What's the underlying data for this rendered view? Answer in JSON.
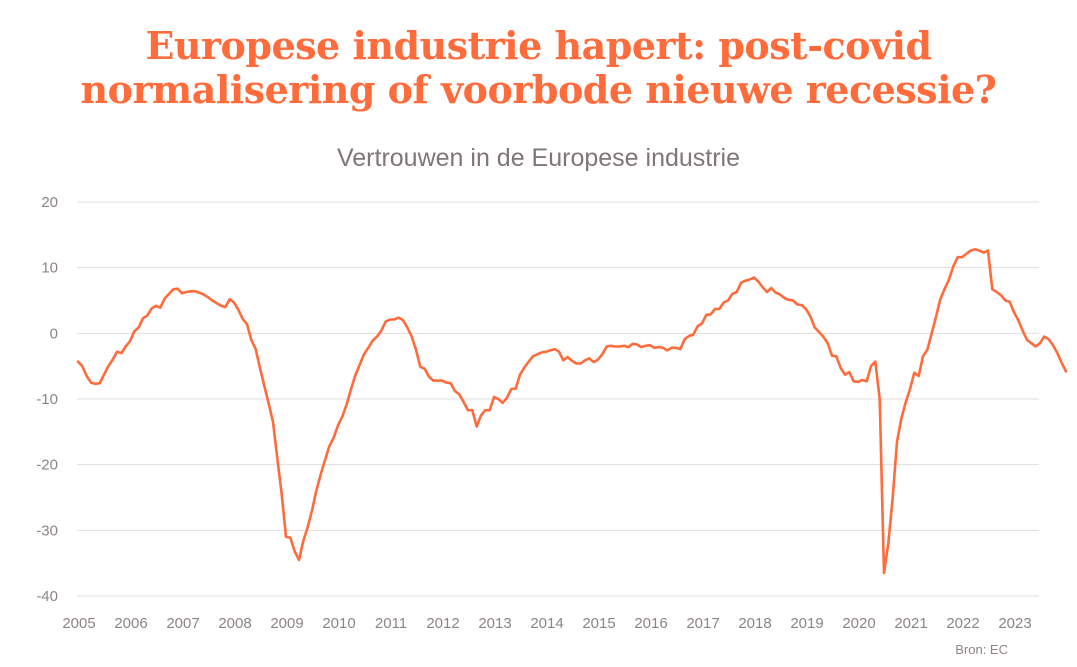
{
  "header": {
    "title_line1": "Europese industrie hapert: post-covid",
    "title_line2": "normalisering of voorbode nieuwe recessie?"
  },
  "footer": {
    "source": "Bron: EC"
  },
  "colors": {
    "line": "#ff6b3b",
    "title": "#ff6b3b",
    "grid": "#e0dede",
    "text": "#8c8485"
  },
  "chart_data": {
    "type": "line",
    "title": "Vertrouwen in de Europese industrie",
    "xlabel": "",
    "ylabel": "",
    "ylim": [
      -40,
      20
    ],
    "xlim": [
      2005.0,
      2023.42
    ],
    "yticks": [
      "20",
      "10",
      "0",
      "-10",
      "-20",
      "-30",
      "-40"
    ],
    "ytick_values": [
      20,
      10,
      0,
      -10,
      -20,
      -30,
      -40
    ],
    "xticks": [
      "2005",
      "2006",
      "2007",
      "2008",
      "2009",
      "2010",
      "2011",
      "2012",
      "2013",
      "2014",
      "2015",
      "2016",
      "2017",
      "2018",
      "2019",
      "2020",
      "2021",
      "2022",
      "2023"
    ],
    "grid": true,
    "legend": "none",
    "series": [
      {
        "name": "Vertrouwen in de Europese industrie",
        "start": 2005.0,
        "step_months": 1,
        "values": [
          -4.3,
          -5.0,
          -6.5,
          -7.5,
          -7.7,
          -7.6,
          -6.3,
          -5.0,
          -4.0,
          -2.8,
          -3.0,
          -2.0,
          -1.2,
          0.3,
          0.9,
          2.3,
          2.7,
          3.8,
          4.2,
          3.9,
          5.3,
          6.0,
          6.7,
          6.8,
          6.1,
          6.3,
          6.4,
          6.4,
          6.2,
          5.9,
          5.5,
          5.0,
          4.6,
          4.2,
          4.0,
          5.2,
          4.7,
          3.6,
          2.2,
          1.4,
          -1.0,
          -2.4,
          -5.3,
          -8.0,
          -10.7,
          -13.5,
          -19.0,
          -24.5,
          -31.0,
          -31.1,
          -33.2,
          -34.5,
          -31.6,
          -29.5,
          -27.0,
          -24.0,
          -21.5,
          -19.3,
          -17.2,
          -15.9,
          -14.0,
          -12.7,
          -10.8,
          -8.5,
          -6.4,
          -4.8,
          -3.2,
          -2.2,
          -1.1,
          -0.5,
          0.4,
          1.8,
          2.1,
          2.1,
          2.4,
          2.0,
          0.9,
          -0.5,
          -2.5,
          -5.1,
          -5.4,
          -6.6,
          -7.2,
          -7.2,
          -7.2,
          -7.5,
          -7.6,
          -8.8,
          -9.3,
          -10.5,
          -11.7,
          -11.7,
          -14.2,
          -12.5,
          -11.7,
          -11.7,
          -9.7,
          -10.0,
          -10.6,
          -9.8,
          -8.5,
          -8.4,
          -6.3,
          -5.2,
          -4.3,
          -3.5,
          -3.2,
          -2.9,
          -2.8,
          -2.6,
          -2.4,
          -2.8,
          -4.1,
          -3.6,
          -4.2,
          -4.6,
          -4.6,
          -4.1,
          -3.8,
          -4.4,
          -4.0,
          -3.2,
          -2.0,
          -1.9,
          -2.0,
          -2.0,
          -1.9,
          -2.1,
          -1.6,
          -1.7,
          -2.1,
          -1.9,
          -1.8,
          -2.2,
          -2.1,
          -2.2,
          -2.6,
          -2.2,
          -2.2,
          -2.4,
          -0.9,
          -0.4,
          -0.2,
          1.1,
          1.5,
          2.8,
          2.9,
          3.7,
          3.7,
          4.7,
          5.0,
          6.0,
          6.3,
          7.7,
          8.0,
          8.2,
          8.5,
          7.9,
          7.0,
          6.3,
          6.9,
          6.2,
          5.9,
          5.4,
          5.1,
          5.0,
          4.4,
          4.3,
          3.7,
          2.6,
          0.9,
          0.2,
          -0.5,
          -1.5,
          -3.4,
          -3.5,
          -5.3,
          -6.3,
          -5.9,
          -7.3,
          -7.4,
          -7.1,
          -7.3,
          -5.0,
          -4.3,
          -10.0,
          -36.5,
          -32.0,
          -25.0,
          -16.5,
          -13.0,
          -10.5,
          -8.5,
          -6.0,
          -6.5,
          -3.5,
          -2.5,
          0.0,
          2.5,
          5.2,
          6.8,
          8.2,
          10.2,
          11.6,
          11.6,
          12.1,
          12.6,
          12.8,
          12.6,
          12.3,
          12.6,
          6.7,
          6.3,
          5.8,
          5.0,
          4.8,
          3.2,
          2.0,
          0.4,
          -1.0,
          -1.5,
          -2.0,
          -1.5,
          -0.5,
          -0.9,
          -1.8,
          -3.0,
          -4.5,
          -5.8
        ]
      }
    ]
  }
}
